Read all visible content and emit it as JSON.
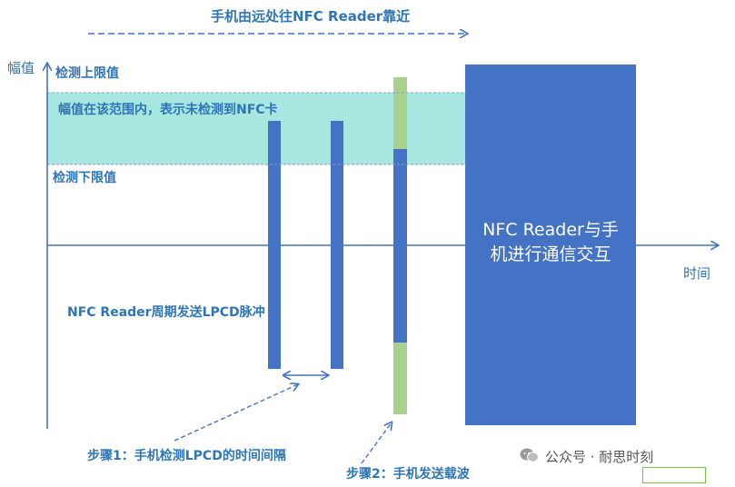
{
  "diagram": {
    "top_arrow_label": "手机由远处往NFC Reader靠近",
    "y_axis_label": "幅值",
    "x_axis_label": "时间",
    "upper_limit_label": "检测上限值",
    "lower_limit_label": "检测下限值",
    "band_label": "幅值在该范围内，表示未检测到NFC卡",
    "pulse_label": "NFC Reader周期发送LPCD脉冲",
    "step1_label": "步骤1：手机检测LPCD的时间间隔",
    "step2_label": "步骤2：手机发送载波",
    "comm_box_label": "NFC Reader与手机进行通信交互",
    "colors": {
      "label_blue": "#2E75B6",
      "pulse_blue": "#4472C4",
      "band_fill": "#A8E6E0",
      "carrier_green": "#A9D18E"
    }
  },
  "watermark": {
    "text": "公众号 · 耐思时刻",
    "icon": "wechat-icon"
  }
}
